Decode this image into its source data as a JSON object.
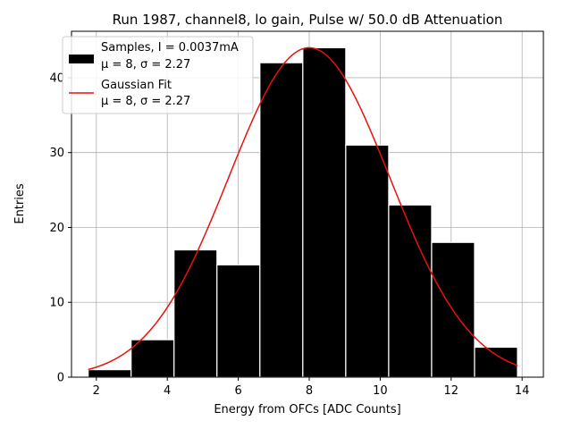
{
  "chart_data": {
    "type": "bar",
    "title": "Run 1987, channel8, lo gain, Pulse w/ 50.0 dB Attenuation",
    "xlabel": "Energy from OFCs [ADC Counts]",
    "ylabel": "Entries",
    "xlim": [
      1.3,
      14.6
    ],
    "ylim": [
      0,
      46.2
    ],
    "xticks": [
      2,
      4,
      6,
      8,
      10,
      12,
      14
    ],
    "yticks": [
      0,
      10,
      20,
      30,
      40
    ],
    "grid": true,
    "legend_position": "top-left",
    "histogram": {
      "bin_edges": [
        1.77,
        2.98,
        4.19,
        5.4,
        6.61,
        7.82,
        9.03,
        10.24,
        11.45,
        12.66,
        13.87
      ],
      "counts": [
        1,
        5,
        17,
        15,
        42,
        44,
        31,
        23,
        18,
        4
      ],
      "color": "#000000",
      "edgecolor": "#ffffff",
      "legend_label": "Samples, I = 0.0037mA",
      "legend_sublabel": "μ = 8, σ = 2.27"
    },
    "fit": {
      "type": "gaussian",
      "mu": 8,
      "sigma": 2.27,
      "amplitude": 44,
      "x_range": [
        1.77,
        13.87
      ],
      "color": "#e8120c",
      "legend_label": "Gaussian Fit",
      "legend_sublabel": "μ = 8, σ = 2.27"
    }
  }
}
